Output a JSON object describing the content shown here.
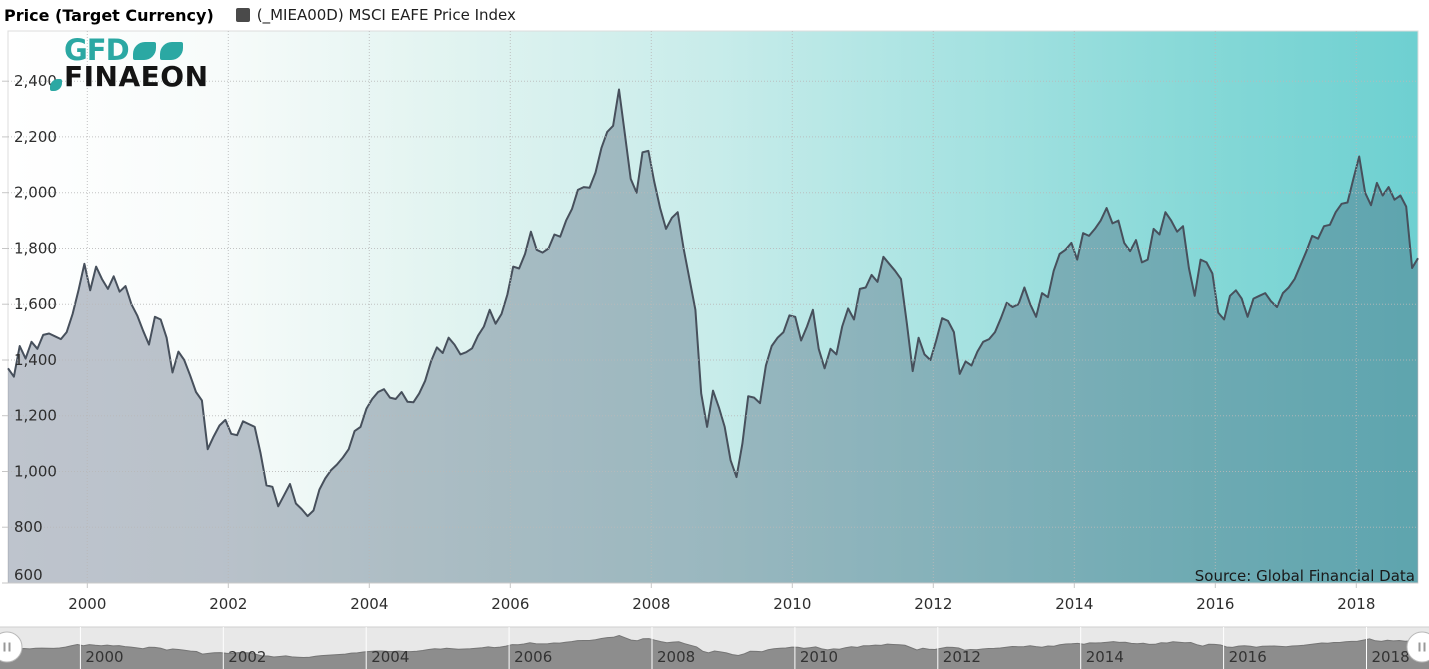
{
  "header": {
    "title": "Price (Target Currency)",
    "legend_label": "(_MIEA00D) MSCI EAFE Price Index",
    "legend_color": "#4a4a4a"
  },
  "logo": {
    "gfd": "GFD",
    "finaeon": "FINAEON",
    "teal": "#2ba8a3"
  },
  "source_note": "Source: Global Financial Data",
  "chart_data": {
    "type": "area",
    "title": "Price (Target Currency)",
    "xlabel": "",
    "ylabel": "",
    "grid": true,
    "legend_position": "top",
    "x_range": [
      1998.875,
      2018.875
    ],
    "y_range": [
      600,
      2580
    ],
    "x_ticks": [
      2000,
      2002,
      2004,
      2006,
      2008,
      2010,
      2012,
      2014,
      2016,
      2018
    ],
    "y_ticks": [
      600,
      800,
      1000,
      1200,
      1400,
      1600,
      1800,
      2000,
      2200,
      2400
    ],
    "y_tick_labels": [
      "600",
      "800",
      "1,000",
      "1,200",
      "1,400",
      "1,600",
      "1,800",
      "2,000",
      "2,200",
      "2,400"
    ],
    "background_gradient": [
      {
        "offset": 0,
        "color": "#ffffff"
      },
      {
        "offset": 0.15,
        "color": "#f7fbfa"
      },
      {
        "offset": 0.3,
        "color": "#e3f4f1"
      },
      {
        "offset": 0.5,
        "color": "#c8ecea"
      },
      {
        "offset": 0.7,
        "color": "#a2e1e0"
      },
      {
        "offset": 0.85,
        "color": "#85d8d7"
      },
      {
        "offset": 1,
        "color": "#6ed0d1"
      }
    ],
    "series_line_color": "#47505c",
    "series_fill_color": "rgba(64,82,108,0.34)",
    "series": [
      {
        "name": "(_MIEA00D) MSCI EAFE Price Index",
        "x_start": 1998.875,
        "x_step": 0.0833333,
        "values": [
          1370,
          1340,
          1450,
          1405,
          1465,
          1440,
          1490,
          1495,
          1485,
          1475,
          1500,
          1565,
          1650,
          1745,
          1650,
          1735,
          1690,
          1655,
          1700,
          1645,
          1665,
          1600,
          1560,
          1505,
          1455,
          1555,
          1545,
          1480,
          1355,
          1430,
          1400,
          1345,
          1285,
          1255,
          1080,
          1125,
          1165,
          1185,
          1135,
          1130,
          1180,
          1170,
          1160,
          1065,
          950,
          945,
          875,
          915,
          955,
          885,
          865,
          840,
          860,
          935,
          975,
          1005,
          1025,
          1050,
          1080,
          1145,
          1160,
          1225,
          1260,
          1285,
          1295,
          1265,
          1260,
          1285,
          1250,
          1248,
          1280,
          1325,
          1395,
          1445,
          1425,
          1480,
          1455,
          1420,
          1428,
          1442,
          1487,
          1520,
          1580,
          1530,
          1565,
          1635,
          1735,
          1728,
          1780,
          1860,
          1795,
          1785,
          1800,
          1850,
          1842,
          1900,
          1942,
          2010,
          2020,
          2018,
          2072,
          2160,
          2218,
          2240,
          2370,
          2210,
          2050,
          2000,
          2145,
          2150,
          2040,
          1945,
          1870,
          1910,
          1930,
          1800,
          1690,
          1580,
          1280,
          1160,
          1290,
          1230,
          1160,
          1040,
          980,
          1100,
          1270,
          1265,
          1245,
          1380,
          1450,
          1480,
          1500,
          1560,
          1555,
          1470,
          1520,
          1580,
          1440,
          1370,
          1440,
          1420,
          1520,
          1585,
          1545,
          1655,
          1660,
          1705,
          1680,
          1770,
          1745,
          1720,
          1690,
          1530,
          1360,
          1480,
          1420,
          1400,
          1470,
          1550,
          1540,
          1500,
          1350,
          1395,
          1380,
          1430,
          1465,
          1475,
          1500,
          1550,
          1605,
          1590,
          1600,
          1660,
          1600,
          1555,
          1640,
          1625,
          1720,
          1780,
          1795,
          1820,
          1760,
          1855,
          1845,
          1870,
          1900,
          1945,
          1890,
          1900,
          1820,
          1790,
          1830,
          1750,
          1760,
          1870,
          1850,
          1930,
          1900,
          1860,
          1880,
          1730,
          1630,
          1760,
          1750,
          1710,
          1570,
          1545,
          1630,
          1650,
          1620,
          1555,
          1620,
          1630,
          1640,
          1610,
          1590,
          1640,
          1660,
          1690,
          1740,
          1790,
          1845,
          1835,
          1880,
          1885,
          1930,
          1960,
          1965,
          2050,
          2130,
          2000,
          1955,
          2035,
          1990,
          2020,
          1975,
          1990,
          1950,
          1730,
          1765
        ]
      }
    ]
  },
  "navigator": {
    "background": "#e8e8e8",
    "fill": "#8d8d8d",
    "line": "#757575",
    "gridline": "#ffffff",
    "x_ticks": [
      2000,
      2002,
      2004,
      2006,
      2008,
      2010,
      2012,
      2014,
      2016,
      2018
    ]
  }
}
